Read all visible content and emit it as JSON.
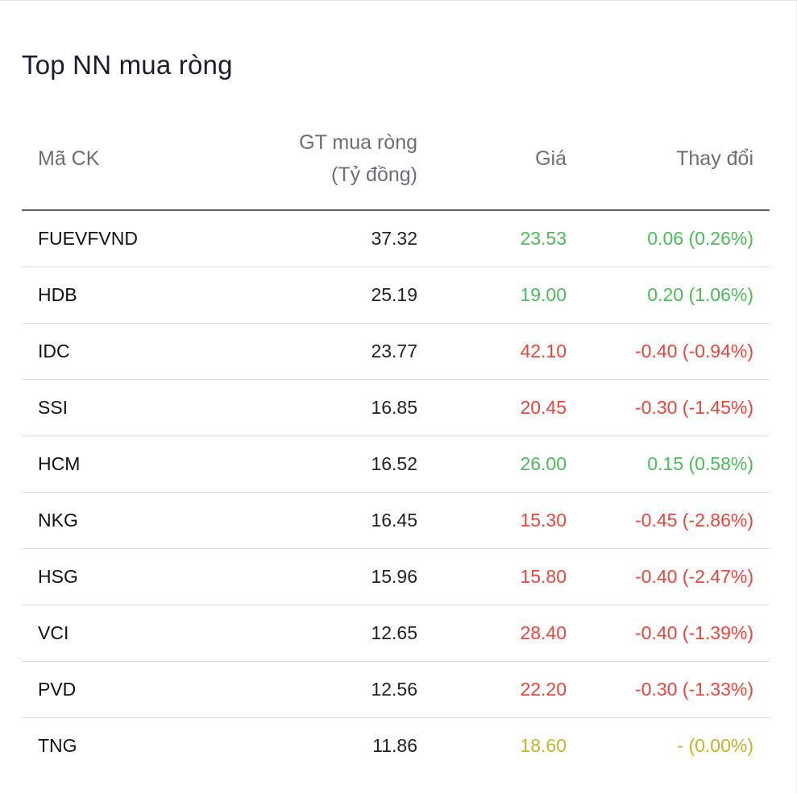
{
  "panel": {
    "title": "Top NN mua ròng"
  },
  "colors": {
    "up": "#4fb85a",
    "down": "#e5473f",
    "ref": "#c2b332"
  },
  "table": {
    "headers": {
      "code": "Mã CK",
      "value_line1": "GT mua ròng",
      "value_line2": "(Tỷ đồng)",
      "price": "Giá",
      "change": "Thay đổi"
    },
    "rows": [
      {
        "code": "FUEVFVND",
        "value": "37.32",
        "price": "23.53",
        "change": "0.06 (0.26%)",
        "trend": "up"
      },
      {
        "code": "HDB",
        "value": "25.19",
        "price": "19.00",
        "change": "0.20 (1.06%)",
        "trend": "up"
      },
      {
        "code": "IDC",
        "value": "23.77",
        "price": "42.10",
        "change": "-0.40 (-0.94%)",
        "trend": "down"
      },
      {
        "code": "SSI",
        "value": "16.85",
        "price": "20.45",
        "change": "-0.30 (-1.45%)",
        "trend": "down"
      },
      {
        "code": "HCM",
        "value": "16.52",
        "price": "26.00",
        "change": "0.15 (0.58%)",
        "trend": "up"
      },
      {
        "code": "NKG",
        "value": "16.45",
        "price": "15.30",
        "change": "-0.45 (-2.86%)",
        "trend": "down"
      },
      {
        "code": "HSG",
        "value": "15.96",
        "price": "15.80",
        "change": "-0.40 (-2.47%)",
        "trend": "down"
      },
      {
        "code": "VCI",
        "value": "12.65",
        "price": "28.40",
        "change": "-0.40 (-1.39%)",
        "trend": "down"
      },
      {
        "code": "PVD",
        "value": "12.56",
        "price": "22.20",
        "change": "-0.30 (-1.33%)",
        "trend": "down"
      },
      {
        "code": "TNG",
        "value": "11.86",
        "price": "18.60",
        "change": "- (0.00%)",
        "trend": "ref"
      }
    ]
  }
}
